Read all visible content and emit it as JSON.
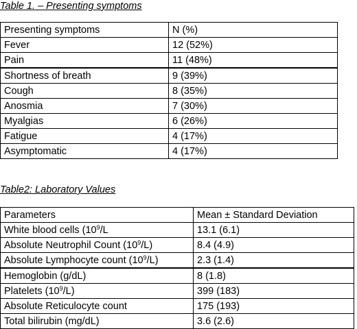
{
  "table1": {
    "caption": "Table 1. – Presenting symptoms",
    "headers": [
      "Presenting symptoms",
      "N (%)"
    ],
    "rows": [
      [
        "Fever",
        "12 (52%)"
      ],
      [
        "Pain",
        "11 (48%)"
      ],
      [
        "Shortness of breath",
        "9 (39%)"
      ],
      [
        "Cough",
        "8 (35%)"
      ],
      [
        "Anosmia",
        "7 (30%)"
      ],
      [
        "Myalgias",
        "6 (26%)"
      ],
      [
        "Fatigue",
        "4 (17%)"
      ],
      [
        "Asymptomatic",
        "4 (17%)"
      ]
    ]
  },
  "table2": {
    "caption": "Table2: Laboratory Values",
    "headers": [
      "Parameters",
      "Mean ± Standard Deviation"
    ],
    "rows": [
      {
        "label_pre": "White blood cells (10",
        "label_sup": "9",
        "label_post": "/L",
        "value": "13.1 (6.1)"
      },
      {
        "label_pre": "Absolute Neutrophil Count (10",
        "label_sup": "9",
        "label_post": "/L)",
        "value": "8.4 (4.9)"
      },
      {
        "label_pre": "Absolute Lymphocyte count (10",
        "label_sup": "9",
        "label_post": "/L)",
        "value": "2.3 (1.4)"
      },
      {
        "label_pre": "Hemoglobin (g/dL)",
        "label_sup": "",
        "label_post": "",
        "value": "8 (1.8)"
      },
      {
        "label_pre": "Platelets (10",
        "label_sup": "9",
        "label_post": "/L)",
        "value": "399 (183)"
      },
      {
        "label_pre": "Absolute Reticulocyte count",
        "label_sup": "",
        "label_post": "",
        "value": "175 (193)"
      },
      {
        "label_pre": "Total bilirubin (mg/dL)",
        "label_sup": "",
        "label_post": "",
        "value": "3.6 (2.6)"
      }
    ]
  }
}
